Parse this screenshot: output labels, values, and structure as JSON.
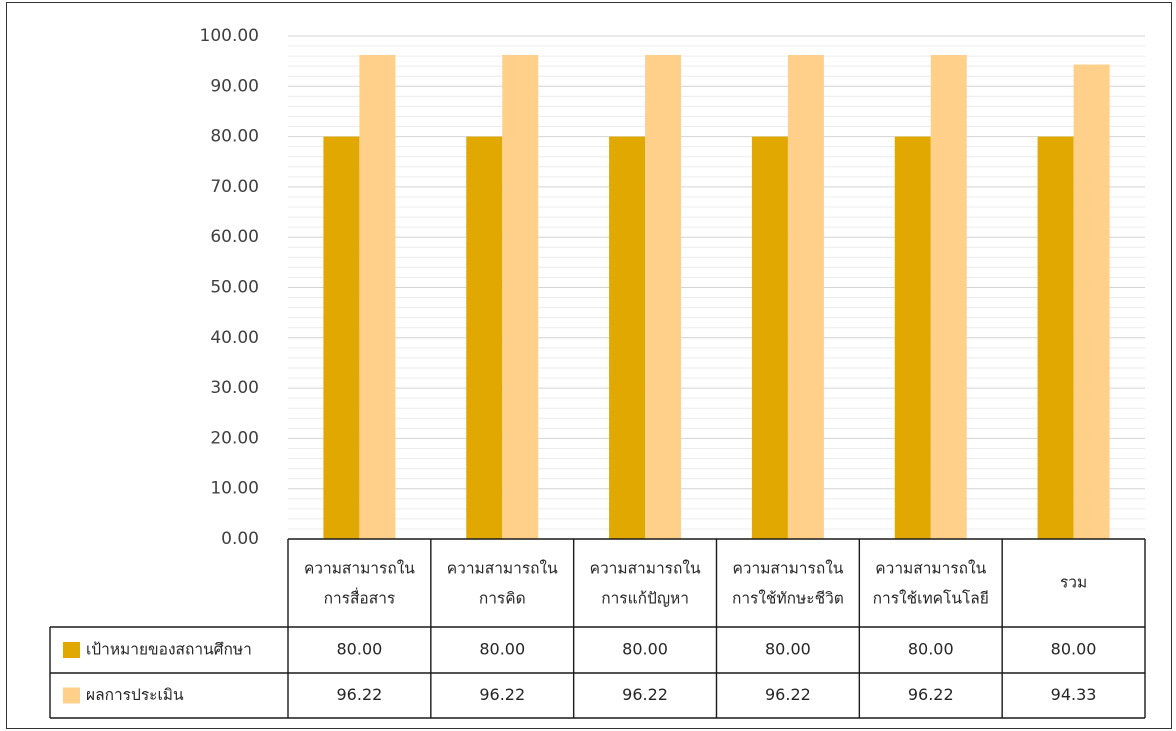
{
  "chart_data": {
    "type": "bar",
    "title": "",
    "xlabel": "",
    "ylabel": "",
    "ylim": [
      0,
      100
    ],
    "y_ticks": [
      "0.00",
      "10.00",
      "20.00",
      "30.00",
      "40.00",
      "50.00",
      "60.00",
      "70.00",
      "80.00",
      "90.00",
      "100.00"
    ],
    "grid": true,
    "legend": "data-table-left",
    "categories": [
      [
        "ความสามารถใน",
        "การสื่อสาร"
      ],
      [
        "ความสามารถใน",
        "การคิด"
      ],
      [
        "ความสามารถใน",
        "การแก้ปัญหา"
      ],
      [
        "ความสามารถใน",
        "การใช้ทักษะชีวิต"
      ],
      [
        "ความสามารถใน",
        "การใช้เทคโนโลยี"
      ],
      [
        "รวม"
      ]
    ],
    "series": [
      {
        "name": "เป้าหมายของสถานศึกษา",
        "color": "#E0A800",
        "values": [
          80,
          80,
          80,
          80,
          80,
          80
        ],
        "labels": [
          "80.00",
          "80.00",
          "80.00",
          "80.00",
          "80.00",
          "80.00"
        ]
      },
      {
        "name": "ผลการประเมิน",
        "color": "#FFD08A",
        "values": [
          96.22,
          96.22,
          96.22,
          96.22,
          96.22,
          94.33
        ],
        "labels": [
          "96.22",
          "96.22",
          "96.22",
          "96.22",
          "96.22",
          "94.33"
        ]
      }
    ]
  }
}
